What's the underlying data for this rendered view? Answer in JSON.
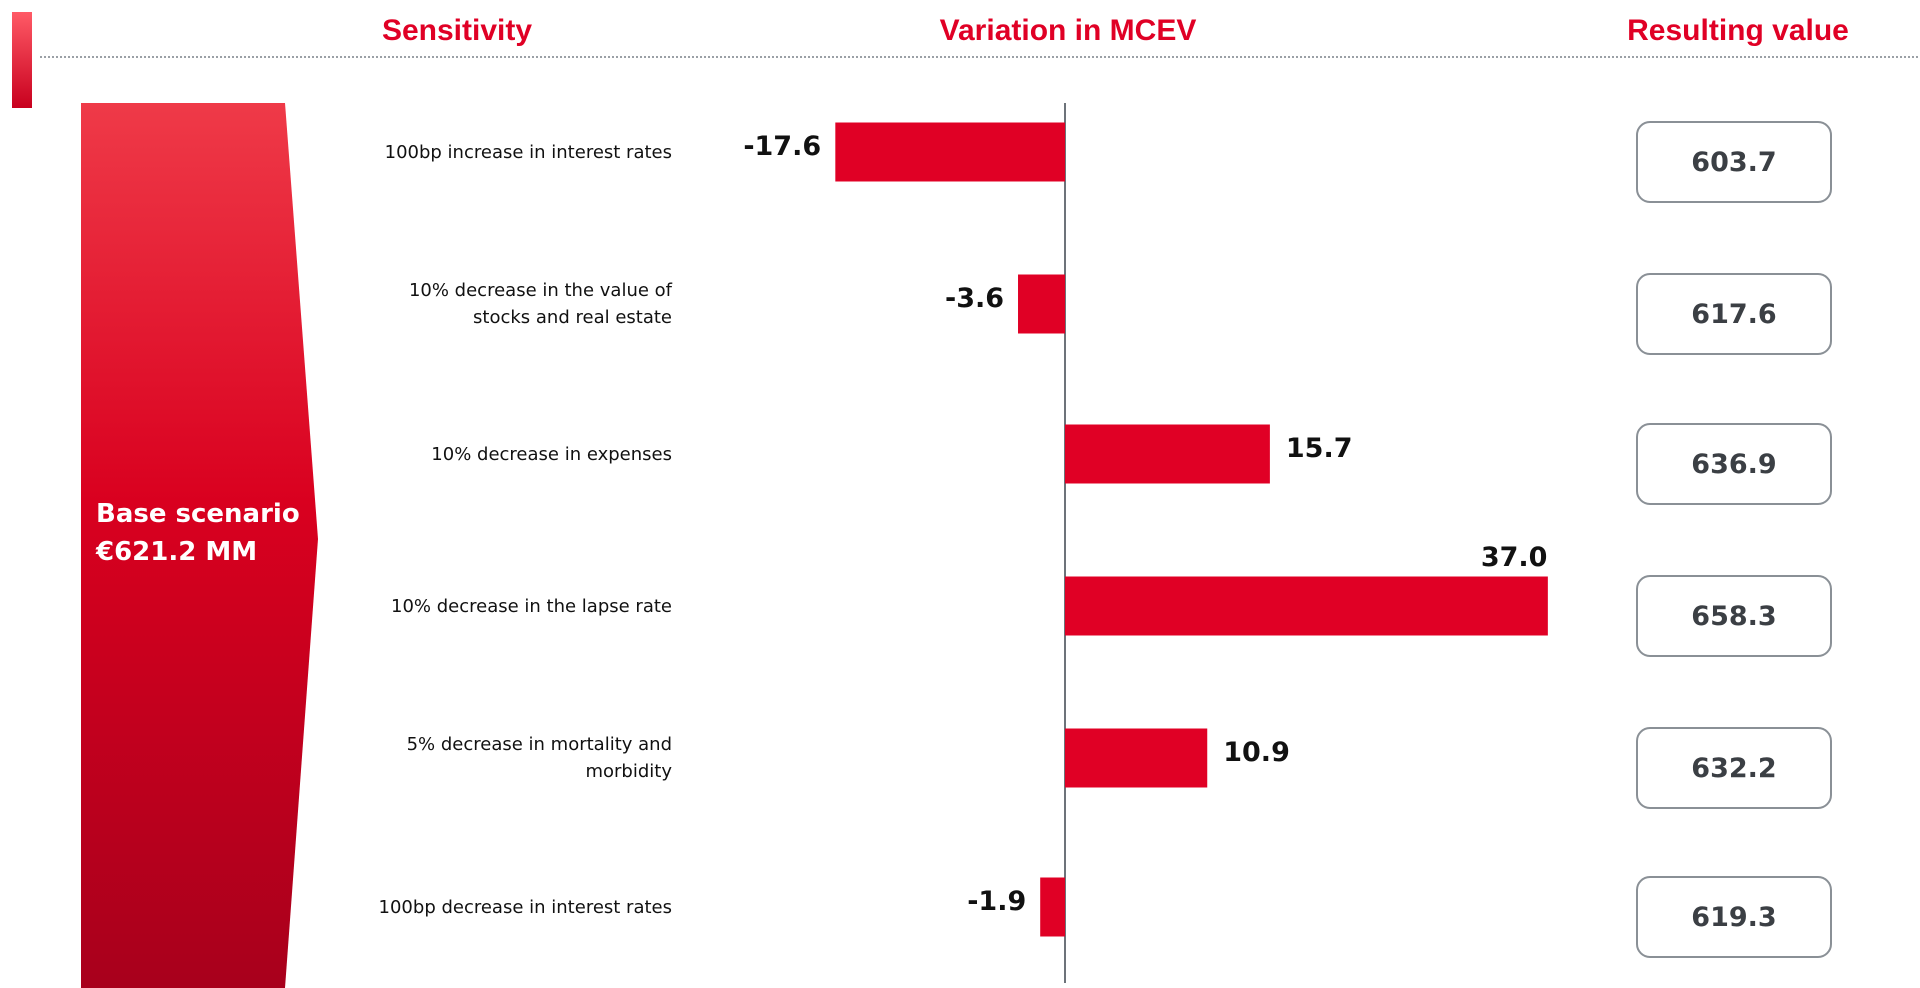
{
  "chart_data": {
    "type": "bar",
    "headers": [
      "Sensitivity",
      "Variation in MCEV",
      "Resulting value"
    ],
    "annotations": [
      "Base scenario",
      "€621.2 MM"
    ],
    "categories": [
      "100bp increase in interest rates",
      "10% decrease in the value of stocks and real estate",
      "10% decrease in expenses",
      "10% decrease in the lapse rate",
      "5% decrease in mortality and morbidity",
      "100bp decrease in interest rates"
    ],
    "values": [
      -17.6,
      -3.6,
      15.7,
      37.0,
      10.9,
      -1.9
    ],
    "value_labels": [
      "-17.6",
      "-3.6",
      "15.7",
      "37.0",
      "10.9",
      "-1.9"
    ],
    "resulting_values": [
      603.7,
      617.6,
      636.9,
      658.3,
      632.2,
      619.3
    ],
    "color": "#e00025",
    "xlim": [
      -20,
      40
    ]
  }
}
